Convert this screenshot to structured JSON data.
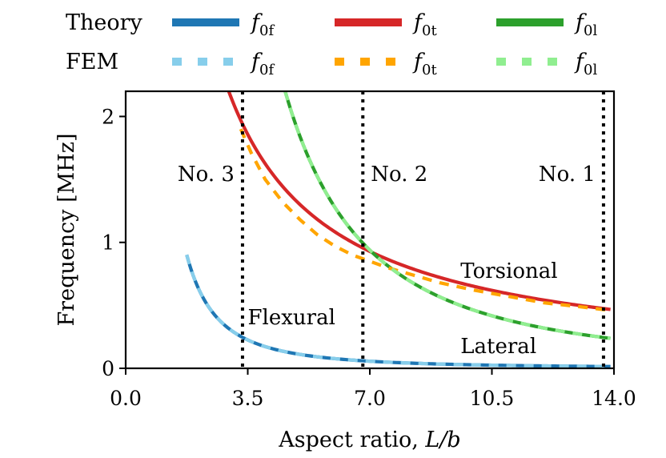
{
  "chart_data": {
    "type": "line",
    "xlabel_text": "Aspect ratio, ",
    "xlabel_var": "L/b",
    "ylabel": "Frequency [MHz]",
    "xlim": [
      0,
      14.0
    ],
    "ylim": [
      0,
      2.2
    ],
    "xticks": [
      0.0,
      3.5,
      7.0,
      10.5,
      14.0
    ],
    "xtick_labels": [
      "0.0",
      "3.5",
      "7.0",
      "10.5",
      "14.0"
    ],
    "yticks": [
      0,
      1,
      2
    ],
    "ytick_labels": [
      "0",
      "1",
      "2"
    ],
    "legend": {
      "theory_label": "Theory",
      "fem_label": "FEM",
      "theory": [
        {
          "key": "flex",
          "sym": "f",
          "sub": "0f",
          "color": "#1f77b4"
        },
        {
          "key": "tors",
          "sym": "f",
          "sub": "0t",
          "color": "#d62728"
        },
        {
          "key": "lat",
          "sym": "f",
          "sub": "0l",
          "color": "#2ca02c"
        }
      ],
      "fem": [
        {
          "key": "flex",
          "sym": "f",
          "sub": "0f",
          "color": "#87ceeb"
        },
        {
          "key": "tors",
          "sym": "f",
          "sub": "0t",
          "color": "#ffa500"
        },
        {
          "key": "lat",
          "sym": "f",
          "sub": "0l",
          "color": "#90ee90"
        }
      ]
    },
    "series": [
      {
        "name": "f0f theory",
        "kind": "theory",
        "color": "#1f77b4",
        "model": "power",
        "coef": 2.76,
        "exp": -2,
        "x_start": 1.75,
        "x_end": 13.9
      },
      {
        "name": "f0t theory",
        "kind": "theory",
        "color": "#d62728",
        "model": "power",
        "coef": 6.5,
        "exp": -1,
        "x_start": 2.95,
        "x_end": 13.9
      },
      {
        "name": "f0l theory",
        "kind": "theory",
        "color": "#2ca02c",
        "model": "power",
        "coef": 46.0,
        "exp": -2,
        "x_start": 4.57,
        "x_end": 13.9
      },
      {
        "name": "f0f FEM",
        "kind": "fem",
        "color": "#87ceeb",
        "model": "power",
        "coef": 2.76,
        "exp": -2,
        "x_start": 1.75,
        "x_end": 13.9
      },
      {
        "name": "f0t FEM",
        "kind": "fem",
        "color": "#ffa500",
        "model": "points",
        "x": [
          3.3,
          3.6,
          4.0,
          4.5,
          5.0,
          5.5,
          6.0,
          6.5,
          7.0,
          7.5,
          8.0,
          9.0,
          10.0,
          11.0,
          12.0,
          13.0,
          13.9
        ],
        "y": [
          1.9,
          1.71,
          1.5,
          1.32,
          1.18,
          1.06,
          0.97,
          0.9,
          0.85,
          0.8,
          0.76,
          0.68,
          0.62,
          0.57,
          0.52,
          0.49,
          0.46
        ]
      },
      {
        "name": "f0l FEM",
        "kind": "fem",
        "color": "#90ee90",
        "model": "power",
        "coef": 46.0,
        "exp": -2,
        "x_start": 4.57,
        "x_end": 13.9
      }
    ],
    "vlines": [
      {
        "x": 3.35,
        "label": "No. 3",
        "label_side": "left"
      },
      {
        "x": 6.8,
        "label": "No. 2",
        "label_side": "right"
      },
      {
        "x": 13.7,
        "label": "No. 1",
        "label_side": "left"
      }
    ],
    "annotations": [
      {
        "text": "Flexural",
        "x": 3.5,
        "y": 0.35
      },
      {
        "text": "Torsional",
        "x": 9.6,
        "y": 0.72
      },
      {
        "text": "Lateral",
        "x": 9.6,
        "y": 0.12
      }
    ]
  }
}
